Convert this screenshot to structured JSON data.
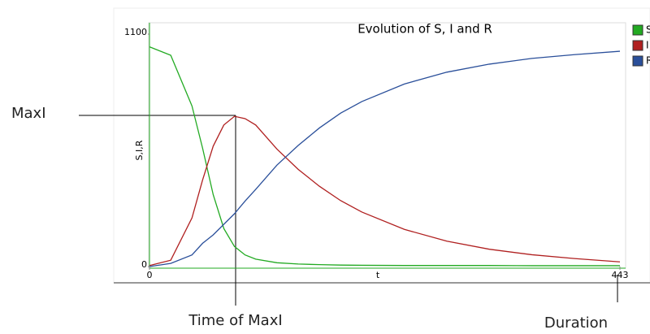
{
  "chart_data": {
    "type": "line",
    "title": "Evolution of S, I and R",
    "x_label": "t",
    "y_label": "S,I,R",
    "x": [
      0,
      20,
      40,
      50,
      60,
      70,
      80,
      90,
      100,
      120,
      140,
      160,
      180,
      200,
      240,
      280,
      320,
      360,
      400,
      443
    ],
    "series": [
      {
        "name": "S",
        "color": "#22aa22",
        "values": [
          1040,
          1000,
          760,
          560,
          340,
          180,
          95,
          55,
          35,
          18,
          12,
          9,
          7,
          6,
          5,
          5,
          5,
          4,
          4,
          4
        ]
      },
      {
        "name": "I",
        "color": "#b02020",
        "values": [
          5,
          30,
          230,
          410,
          570,
          670,
          711,
          700,
          670,
          556,
          460,
          380,
          312,
          258,
          176,
          120,
          82,
          56,
          38,
          22
        ]
      },
      {
        "name": "R",
        "color": "#2a4f9a",
        "values": [
          0,
          15,
          55,
          110,
          150,
          200,
          250,
          310,
          365,
          480,
          573,
          656,
          726,
          781,
          864,
          920,
          958,
          985,
          1003,
          1019
        ]
      }
    ],
    "xlim": [
      0,
      443
    ],
    "xticks": [
      0,
      443
    ],
    "ylim": [
      0,
      1100
    ],
    "yticks": [
      0,
      1100
    ],
    "annotations": [
      "MaxI",
      "Time of MaxI",
      "Duration"
    ]
  }
}
